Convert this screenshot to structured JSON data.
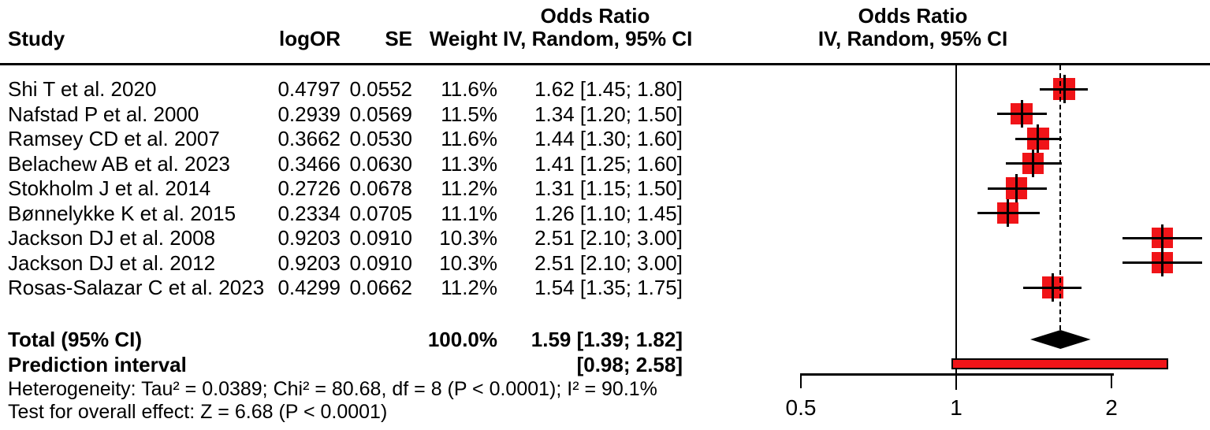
{
  "header": {
    "study": "Study",
    "logor": "logOR",
    "se": "SE",
    "weight": "Weight",
    "or_left_line1": "Odds Ratio",
    "or_left_line2": "IV, Random, 95% CI",
    "or_right_line1": "Odds Ratio",
    "or_right_line2": "IV, Random, 95% CI"
  },
  "footer": {
    "total_label": "Total (95% CI)",
    "total_weight": "100.0%",
    "total_or_ci": "1.59 [1.39; 1.82]",
    "prediction_label": "Prediction interval",
    "prediction_ci": "[0.98; 2.58]",
    "heterogeneity": "Heterogeneity: Tau² = 0.0389; Chi² = 80.68, df = 8 (P < 0.0001); I² = 90.1%",
    "overall_effect": "Test for overall effect: Z = 6.68 (P < 0.0001)"
  },
  "colors": {
    "square": "#f01418",
    "prediction_bar": "#f01418",
    "line": "#000000",
    "diamond": "#000000"
  },
  "chart_data": {
    "type": "forest",
    "title_left": "Odds Ratio",
    "subtitle_left": "IV, Random, 95% CI",
    "title_right": "Odds Ratio",
    "subtitle_right": "IV, Random, 95% CI",
    "x_scale": "log",
    "x_ticks": [
      0.5,
      1,
      2
    ],
    "x_tick_labels": [
      "0.5",
      "1",
      "2"
    ],
    "reference_line_or": 1,
    "pooled_dashed_line_or": 1.59,
    "studies": [
      {
        "name": "Shi T et al. 2020",
        "logor_text": "0.4797",
        "se_text": "0.0552",
        "weight_text": "11.6%",
        "or_ci_text": "1.62 [1.45; 1.80]",
        "or": 1.62,
        "lo": 1.45,
        "hi": 1.8,
        "weight_pct": 11.6
      },
      {
        "name": "Nafstad P et al. 2000",
        "logor_text": "0.2939",
        "se_text": "0.0569",
        "weight_text": "11.5%",
        "or_ci_text": "1.34 [1.20; 1.50]",
        "or": 1.34,
        "lo": 1.2,
        "hi": 1.5,
        "weight_pct": 11.5
      },
      {
        "name": "Ramsey CD et al. 2007",
        "logor_text": "0.3662",
        "se_text": "0.0530",
        "weight_text": "11.6%",
        "or_ci_text": "1.44 [1.30; 1.60]",
        "or": 1.44,
        "lo": 1.3,
        "hi": 1.6,
        "weight_pct": 11.6
      },
      {
        "name": "Belachew AB et al. 2023",
        "logor_text": "0.3466",
        "se_text": "0.0630",
        "weight_text": "11.3%",
        "or_ci_text": "1.41 [1.25; 1.60]",
        "or": 1.41,
        "lo": 1.25,
        "hi": 1.6,
        "weight_pct": 11.3
      },
      {
        "name": "Stokholm J et al. 2014",
        "logor_text": "0.2726",
        "se_text": "0.0678",
        "weight_text": "11.2%",
        "or_ci_text": "1.31 [1.15; 1.50]",
        "or": 1.31,
        "lo": 1.15,
        "hi": 1.5,
        "weight_pct": 11.2
      },
      {
        "name": "Bønnelykke K et al. 2015",
        "logor_text": "0.2334",
        "se_text": "0.0705",
        "weight_text": "11.1%",
        "or_ci_text": "1.26 [1.10; 1.45]",
        "or": 1.26,
        "lo": 1.1,
        "hi": 1.45,
        "weight_pct": 11.1
      },
      {
        "name": "Jackson DJ et al. 2008",
        "logor_text": "0.9203",
        "se_text": "0.0910",
        "weight_text": "10.3%",
        "or_ci_text": "2.51 [2.10; 3.00]",
        "or": 2.51,
        "lo": 2.1,
        "hi": 3.0,
        "weight_pct": 10.3
      },
      {
        "name": "Jackson DJ et al. 2012",
        "logor_text": "0.9203",
        "se_text": "0.0910",
        "weight_text": "10.3%",
        "or_ci_text": "2.51 [2.10; 3.00]",
        "or": 2.51,
        "lo": 2.1,
        "hi": 3.0,
        "weight_pct": 10.3
      },
      {
        "name": "Rosas-Salazar C et al. 2023",
        "logor_text": "0.4299",
        "se_text": "0.0662",
        "weight_text": "11.2%",
        "or_ci_text": "1.54 [1.35; 1.75]",
        "or": 1.54,
        "lo": 1.35,
        "hi": 1.75,
        "weight_pct": 11.2
      }
    ],
    "total": {
      "label": "Total (95% CI)",
      "weight_pct": 100.0,
      "or": 1.59,
      "lo": 1.39,
      "hi": 1.82
    },
    "prediction_interval": {
      "lo": 0.98,
      "hi": 2.58
    },
    "heterogeneity": {
      "tau2": 0.0389,
      "chi2": 80.68,
      "df": 8,
      "p": "< 0.0001",
      "i2_pct": 90.1
    },
    "overall_effect_test": {
      "z": 6.68,
      "p": "< 0.0001"
    }
  }
}
